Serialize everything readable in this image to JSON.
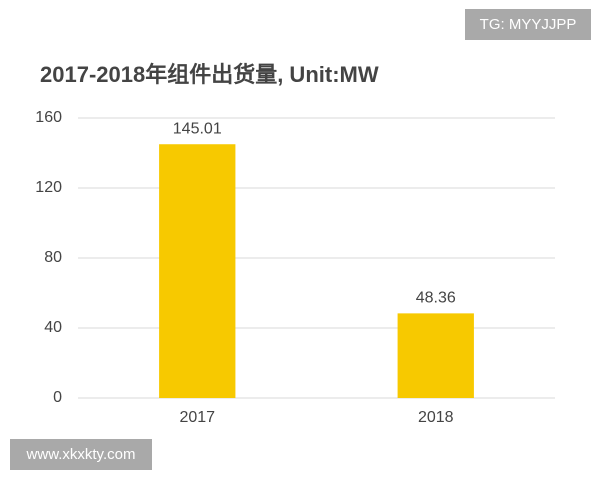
{
  "chart_data": {
    "type": "bar",
    "title": "2017-2018年组件出货量, Unit:MW",
    "categories": [
      "2017",
      "2018"
    ],
    "values": [
      145.01,
      48.36
    ],
    "color": "#f7c900",
    "ylim": [
      0,
      160
    ],
    "yticks": [
      0,
      40,
      80,
      120,
      160
    ],
    "grid": true,
    "annotations": [
      "TG: MYYJJPP",
      "www.xkxkty.com"
    ]
  }
}
